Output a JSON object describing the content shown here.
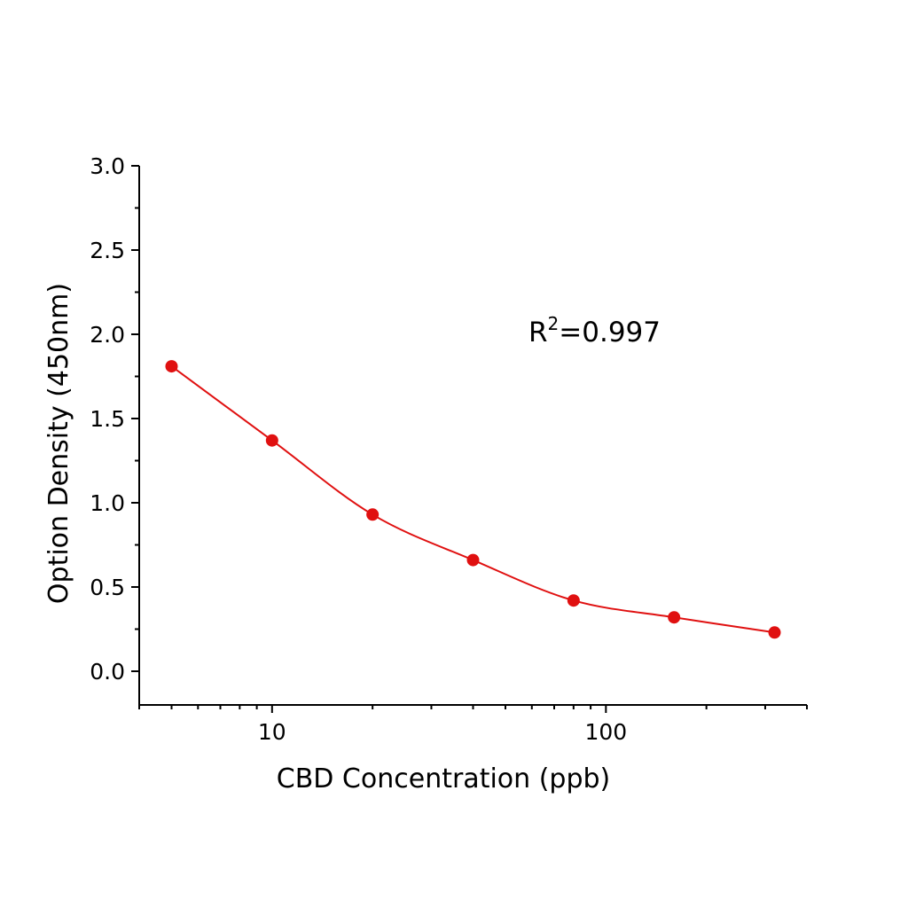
{
  "chart_data": {
    "type": "scatter",
    "title": "",
    "xlabel": "CBD Concentration  (ppb)",
    "ylabel": "Option Density  (450nm)",
    "x_scale": "log",
    "xlim": [
      4,
      400
    ],
    "ylim": [
      -0.2,
      3.0
    ],
    "x_ticks": [
      10,
      100
    ],
    "x_tick_labels": [
      "10",
      "100"
    ],
    "y_ticks": [
      0.0,
      0.5,
      1.0,
      1.5,
      2.0,
      2.5,
      3.0
    ],
    "y_tick_labels": [
      "0.0",
      "0.5",
      "1.0",
      "1.5",
      "2.0",
      "2.5",
      "3.0"
    ],
    "grid": false,
    "annotation": {
      "prefix": "R",
      "superscript": "2",
      "suffix": "=0.997"
    },
    "series": [
      {
        "x": [
          5,
          10,
          20,
          40,
          80,
          160,
          320
        ],
        "y": [
          1.81,
          1.37,
          0.93,
          0.66,
          0.42,
          0.32,
          0.23
        ],
        "color": "#e01010",
        "fit_line": true
      }
    ]
  }
}
